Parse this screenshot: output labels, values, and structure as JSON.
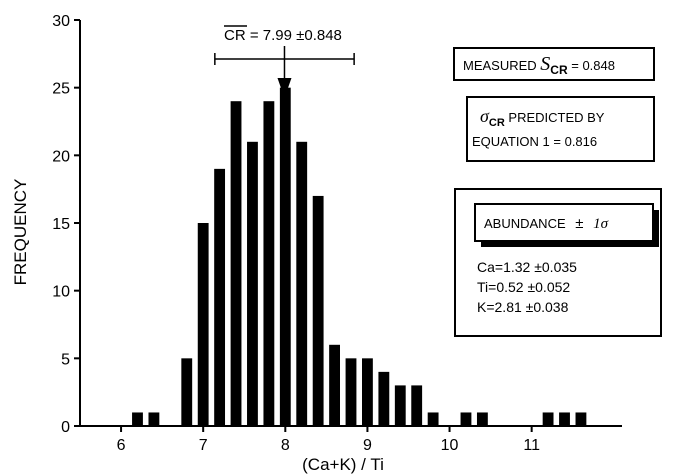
{
  "chart_data": {
    "type": "bar",
    "xlabel": "(Ca+K) / Ti",
    "ylabel": "FREQUENCY",
    "ylim": [
      0,
      30
    ],
    "xlim": [
      5.5,
      12.1
    ],
    "x_ticks": [
      6,
      7,
      8,
      9,
      10,
      11
    ],
    "x_tick_labels": [
      "6",
      "7",
      "8",
      "9",
      "10",
      "11"
    ],
    "y_ticks": [
      0,
      5,
      10,
      15,
      20,
      25,
      30
    ],
    "y_tick_labels": [
      "0",
      "5",
      "10",
      "15",
      "20",
      "25",
      "30"
    ],
    "bin_width": 0.2,
    "x": [
      6.2,
      6.4,
      6.8,
      7.0,
      7.2,
      7.4,
      7.6,
      7.8,
      8.0,
      8.2,
      8.4,
      8.6,
      8.8,
      9.0,
      9.2,
      9.4,
      9.6,
      9.8,
      10.2,
      10.4,
      11.2,
      11.4,
      11.6
    ],
    "values": [
      1,
      1,
      5,
      15,
      19,
      24,
      21,
      24,
      25,
      21,
      17,
      6,
      5,
      5,
      4,
      3,
      3,
      1,
      1,
      1,
      1,
      1,
      1
    ],
    "grid": false,
    "mean_annotation": {
      "label_prefix": "CR",
      "label_rest": " = 7.99 ±0.848",
      "mean": 7.99,
      "sigma": 0.848
    }
  },
  "annotations": {
    "measured": {
      "prefix": "MEASURED ",
      "symbol": "S",
      "subscript": "CR",
      "suffix": " = 0.848"
    },
    "predicted": {
      "symbol": "σ",
      "subscript": "CR",
      "line1_rest": " PREDICTED BY",
      "line2": "EQUATION 1 = 0.816"
    },
    "abundance": {
      "header_label": "ABUNDANCE",
      "header_pm": "±",
      "header_sigma": "1σ",
      "lines": [
        "Ca=1.32 ±0.035",
        "Ti=0.52 ±0.052",
        "K=2.81 ±0.038"
      ]
    }
  },
  "colors": {
    "bar": "#000000",
    "axis": "#000000",
    "background": "#ffffff"
  }
}
